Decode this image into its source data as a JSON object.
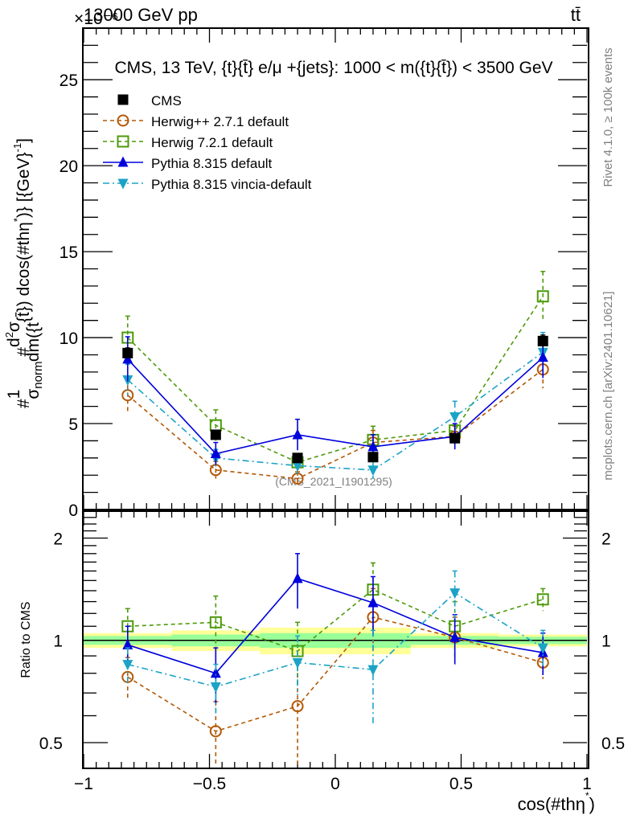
{
  "header": {
    "left_label": "13000 GeV pp",
    "exponent_label": "×10⁻⁶",
    "right_label": "tt̄"
  },
  "side_labels": {
    "rivet": "Rivet 4.1.0, ≥ 100k events",
    "mcplots": "mcplots.cern.ch [arXiv:2401.10621]"
  },
  "chart_data": [
    {
      "type": "line",
      "panel": "main",
      "title": "CMS, 13 TeV, {t}{t̄} e/μ +{jets}: 1000 < m({t}{t̄}) < 3500 GeV",
      "watermark": "(CMS_2021_I1901295)",
      "ylabel": "#1/σ_norm #d²σ/dm({t}{t̄}) dcos(#thη*) [{GeV}⁻¹]",
      "ylabel_parts": {
        "prefix": "#",
        "frac1_num": "1",
        "frac1_den": "σ",
        "frac1_den_sub": "norm",
        "hash2": "#",
        "frac2_num": "d",
        "frac2_num_sup": "2",
        "frac2_num_tail": "σ",
        "frac2_den": "dm({t",
        "suffix": "{t̄}) dcos(#thη",
        "suffix_sup": "*",
        "suffix_tail": ")} [{GeV}",
        "unit_sup": "-1",
        "unit_tail": "]"
      },
      "yscale_note": "×10⁻⁶",
      "ylim": [
        0,
        28
      ],
      "xlim": [
        -1,
        1
      ],
      "yticks": [
        0,
        5,
        10,
        15,
        20,
        25
      ],
      "ytick_labels": [
        "0",
        "5",
        "10",
        "15",
        "20",
        "25"
      ],
      "x": [
        -0.825,
        -0.475,
        -0.15,
        0.15,
        0.475,
        0.825
      ],
      "bin_edges": [
        -1,
        -0.65,
        -0.3,
        0,
        0.3,
        0.65,
        1
      ],
      "legend_position": "top-left",
      "series": [
        {
          "name": "CMS",
          "key": "cms",
          "color": "#000000",
          "marker": "filled-square",
          "line": "none",
          "values": [
            9.1,
            4.35,
            3.0,
            3.05,
            4.15,
            9.8
          ],
          "errors": [
            0.3,
            0.25,
            0.25,
            0.25,
            0.25,
            0.35
          ]
        },
        {
          "name": "Herwig++ 2.7.1 default",
          "key": "hpp",
          "color": "#b35806",
          "marker": "open-circle",
          "line": "dashed",
          "values": [
            6.65,
            2.3,
            1.8,
            3.9,
            4.25,
            8.15
          ],
          "errors": [
            1.0,
            0.5,
            0.4,
            0.7,
            0.6,
            1.1
          ]
        },
        {
          "name": "Herwig 7.2.1 default",
          "key": "h7",
          "color": "#4d9a0a",
          "marker": "open-square",
          "line": "dashed",
          "values": [
            10.0,
            4.9,
            2.75,
            4.05,
            4.6,
            12.4
          ],
          "errors": [
            1.25,
            0.9,
            0.5,
            0.8,
            0.8,
            1.45
          ]
        },
        {
          "name": "Pythia 8.315 default",
          "key": "py",
          "color": "#0000dd",
          "marker": "filled-triangle-up",
          "line": "solid",
          "values": [
            8.75,
            3.25,
            4.35,
            3.65,
            4.25,
            8.85
          ],
          "errors": [
            1.3,
            0.65,
            0.9,
            0.7,
            0.75,
            1.2
          ]
        },
        {
          "name": "Pythia 8.315 vincia-default",
          "key": "vin",
          "color": "#1ba3c6",
          "marker": "filled-triangle-down",
          "line": "dashdot",
          "values": [
            7.55,
            3.0,
            2.55,
            2.3,
            5.4,
            9.15
          ],
          "errors": [
            0.9,
            0.5,
            0.5,
            0.5,
            0.9,
            1.15
          ]
        }
      ]
    },
    {
      "type": "line",
      "panel": "ratio",
      "ylabel": "Ratio to CMS",
      "xlabel": "cos(#thη*)",
      "xlabel_parts": {
        "main": "cos(#thη",
        "sup": "*",
        "tail": ")"
      },
      "yscale": "log",
      "ylim": [
        0.42,
        2.4
      ],
      "yticks": [
        0.5,
        1,
        2
      ],
      "ytick_labels": [
        "0.5",
        "1",
        "2"
      ],
      "xlim": [
        -1,
        1
      ],
      "xticks": [
        -1,
        -0.5,
        0,
        0.5,
        1
      ],
      "xtick_labels": [
        "−1",
        "−0.5",
        "0",
        "0.5",
        "1"
      ],
      "x": [
        -0.825,
        -0.475,
        -0.15,
        0.15,
        0.475,
        0.825
      ],
      "reference_line": 1,
      "bands": {
        "edges": [
          [
            -1,
            -0.65
          ],
          [
            -0.65,
            -0.3
          ],
          [
            -0.3,
            0.3
          ],
          [
            0.3,
            0.65
          ],
          [
            0.65,
            1
          ]
        ],
        "total_halfwidth": [
          0.05,
          0.07,
          0.09,
          0.05,
          0.04
        ],
        "stat_halfwidth": [
          0.03,
          0.04,
          0.05,
          0.03,
          0.025
        ],
        "total_color": "#ffff99",
        "stat_color": "#99ff99"
      },
      "series": [
        {
          "name": "Herwig++ 2.7.1 default",
          "key": "hpp",
          "color": "#b35806",
          "marker": "open-circle",
          "line": "dashed",
          "values": [
            0.78,
            0.54,
            0.64,
            1.17,
            1.02,
            0.86
          ],
          "errors": [
            0.11,
            0.12,
            0.24,
            0.25,
            0.15,
            0.09
          ]
        },
        {
          "name": "Herwig 7.2.1 default",
          "key": "h7",
          "color": "#4d9a0a",
          "marker": "open-square",
          "line": "dashed",
          "values": [
            1.1,
            1.13,
            0.93,
            1.41,
            1.1,
            1.32
          ],
          "errors": [
            0.14,
            0.22,
            0.2,
            0.28,
            0.2,
            0.1
          ]
        },
        {
          "name": "Pythia 8.315 default",
          "key": "py",
          "color": "#0000dd",
          "marker": "filled-triangle-up",
          "line": "solid",
          "values": [
            0.97,
            0.8,
            1.52,
            1.29,
            1.02,
            0.92
          ],
          "errors": [
            0.13,
            0.15,
            0.28,
            0.25,
            0.17,
            0.13
          ]
        },
        {
          "name": "Pythia 8.315 vincia-default",
          "key": "vin",
          "color": "#1ba3c6",
          "marker": "filled-triangle-down",
          "line": "dashdot",
          "values": [
            0.85,
            0.73,
            0.86,
            0.82,
            1.38,
            0.95
          ],
          "errors": [
            0.1,
            0.12,
            0.17,
            0.25,
            0.22,
            0.12
          ]
        }
      ]
    }
  ]
}
